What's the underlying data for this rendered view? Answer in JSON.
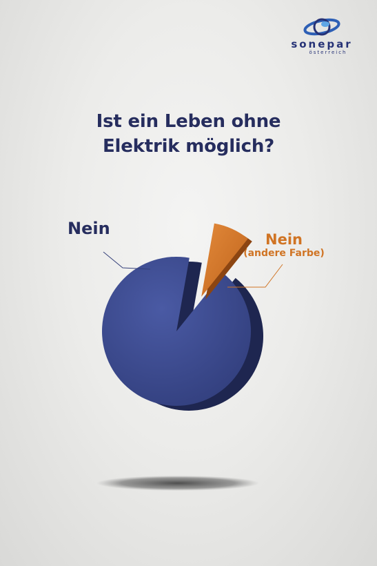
{
  "brand": {
    "name": "sonepar",
    "sub": "österreich",
    "color": "#263276"
  },
  "header": {
    "title_line1": "Ist ein Leben ohne",
    "title_line2": "Elektrik möglich?"
  },
  "chart_data": {
    "type": "pie",
    "title": "Ist ein Leben ohne Elektrik möglich?",
    "slices": [
      {
        "label": "Nein",
        "value": 92,
        "color": "#3a4890",
        "exploded": false
      },
      {
        "label": "Nein",
        "sublabel": "(andere Farbe)",
        "value": 8,
        "color": "#d1762b",
        "exploded": true
      }
    ],
    "style": "3d"
  }
}
